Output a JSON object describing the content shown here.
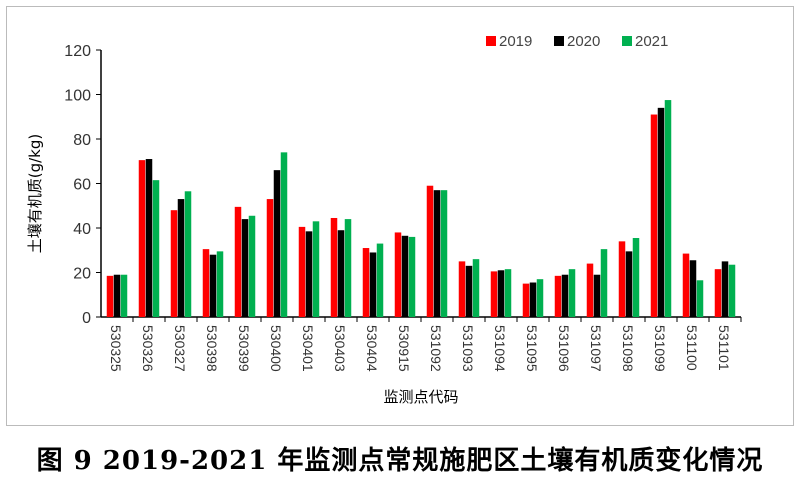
{
  "caption": "图 9 2019-2021 年监测点常规施肥区土壤有机质变化情况",
  "chart_data": {
    "type": "bar",
    "title": "",
    "xlabel": "监测点代码",
    "ylabel": "土壤有机质(g/kg)",
    "ylim": [
      0,
      120
    ],
    "yticks": [
      "0",
      "20",
      "40",
      "60",
      "80",
      "100",
      "120"
    ],
    "legend_position": "top-right",
    "categories": [
      "530325",
      "530326",
      "530327",
      "530398",
      "530399",
      "530400",
      "530401",
      "530403",
      "530404",
      "530915",
      "531092",
      "531093",
      "531094",
      "531095",
      "531096",
      "531097",
      "531098",
      "531099",
      "531100",
      "531101"
    ],
    "series": [
      {
        "name": "2019",
        "color": "#ff0000",
        "values": [
          18.5,
          70.5,
          48,
          30.5,
          49.5,
          53,
          40.5,
          44.5,
          31,
          38,
          59,
          25,
          20.5,
          15,
          18.5,
          24,
          34,
          91,
          28.5,
          21.5
        ]
      },
      {
        "name": "2020",
        "color": "#000000",
        "values": [
          19,
          71,
          53,
          28,
          44,
          66,
          38.5,
          39,
          29,
          36.5,
          57,
          23,
          21,
          15.5,
          19,
          19,
          29.5,
          94,
          25.5,
          25
        ]
      },
      {
        "name": "2021",
        "color": "#00b050",
        "values": [
          19,
          61.5,
          56.5,
          29.5,
          45.5,
          74,
          43,
          44,
          33,
          36,
          57,
          26,
          21.5,
          17,
          21.5,
          30.5,
          35.5,
          97.5,
          16.5,
          23.5
        ]
      }
    ]
  }
}
